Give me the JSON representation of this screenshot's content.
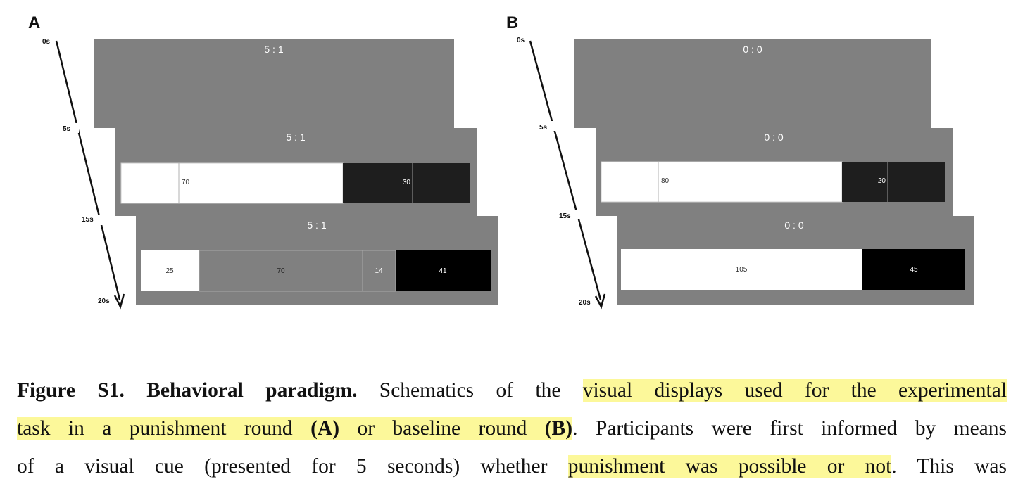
{
  "panels": [
    {
      "label": "A",
      "times": [
        "0s",
        "5s",
        "15s",
        "20s"
      ],
      "screens": [
        {
          "ratio": "5 : 1"
        },
        {
          "ratio": "5 : 1",
          "values": [
            "70",
            "30"
          ]
        },
        {
          "ratio": "5 : 1",
          "values": [
            "25",
            "70",
            "14",
            "41"
          ]
        }
      ]
    },
    {
      "label": "B",
      "times": [
        "0s",
        "5s",
        "15s",
        "20s"
      ],
      "screens": [
        {
          "ratio": "0 : 0"
        },
        {
          "ratio": "0 : 0",
          "values": [
            "80",
            "20"
          ]
        },
        {
          "ratio": "0 : 0",
          "values": [
            "105",
            "45"
          ]
        }
      ]
    }
  ],
  "caption": {
    "lead": "Figure S1. Behavioral paradigm.",
    "text1": " Schematics of the ",
    "hl1": "visual displays used for the experimental",
    "hl1b": "task in a punishment round ",
    "hl1c": "(A)",
    "hl1d": " or baseline round ",
    "hl1e": "(B)",
    "text2": ". Participants were first informed by means",
    "text3": "of a visual cue (presented for 5 seconds) whether ",
    "hl2": "punishment was possible or not",
    "text4": ". This was"
  },
  "colors": {
    "screen": "#808080",
    "white_bar": "#ffffff",
    "dark_bar": "#1e1e1e",
    "black_bar": "#000000",
    "highlight": "#fcf89a"
  }
}
